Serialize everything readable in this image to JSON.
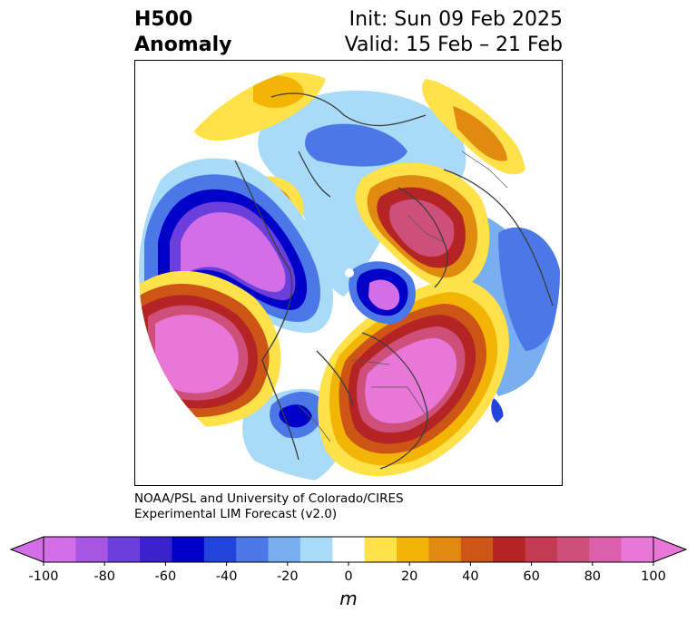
{
  "header": {
    "title_line1": "H500",
    "title_line2": "Anomaly",
    "init": "Init: Sun 09 Feb 2025",
    "valid": "Valid: 15 Feb – 21 Feb"
  },
  "credit": {
    "line1": "NOAA/PSL and University of Colorado/CIRES",
    "line2": "Experimental LIM Forecast (v2.0)"
  },
  "colorbar": {
    "unit": "m",
    "ticks": [
      "-100",
      "-80",
      "-60",
      "-40",
      "-20",
      "0",
      "20",
      "40",
      "60",
      "80",
      "100"
    ],
    "colors": [
      "#d46ee8",
      "#a855e3",
      "#6b3fdc",
      "#3a22cf",
      "#0000c8",
      "#2244dc",
      "#4b78e6",
      "#78aff0",
      "#a9daf8",
      "#ffffff",
      "#ffe14a",
      "#f2b405",
      "#e08a10",
      "#cd5516",
      "#b42424",
      "#c33a51",
      "#cf4f7b",
      "#dc5fae",
      "#e877d8"
    ],
    "min_extend_color": "#d46ee8",
    "max_extend_color": "#e877d8"
  }
}
